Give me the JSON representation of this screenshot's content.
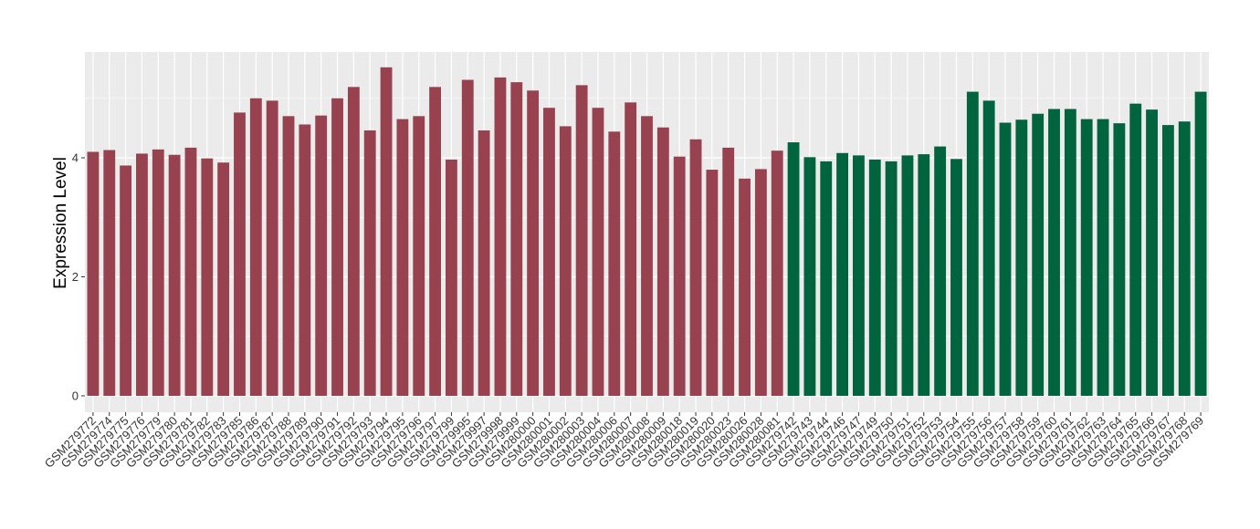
{
  "chart_data": {
    "type": "bar",
    "title": "",
    "xlabel": "",
    "ylabel": "Expression Level",
    "ylim": [
      0,
      5.75
    ],
    "yticks": [
      0,
      2,
      4
    ],
    "grid": true,
    "legend": "none",
    "colors": {
      "group1": "#99424f",
      "group2": "#00643f",
      "panel": "#ebebeb",
      "grid": "#ffffff"
    },
    "categories": [
      "GSM279772",
      "GSM279774",
      "GSM279775",
      "GSM279776",
      "GSM279779",
      "GSM279780",
      "GSM279781",
      "GSM279782",
      "GSM279783",
      "GSM279785",
      "GSM279786",
      "GSM279787",
      "GSM279788",
      "GSM279789",
      "GSM279790",
      "GSM279791",
      "GSM279792",
      "GSM279793",
      "GSM279794",
      "GSM279795",
      "GSM279796",
      "GSM279797",
      "GSM279799",
      "GSM279995",
      "GSM279997",
      "GSM279998",
      "GSM279999",
      "GSM280000",
      "GSM280001",
      "GSM280002",
      "GSM280003",
      "GSM280004",
      "GSM280006",
      "GSM280007",
      "GSM280008",
      "GSM280009",
      "GSM280018",
      "GSM280019",
      "GSM280020",
      "GSM280023",
      "GSM280026",
      "GSM280028",
      "GSM280081",
      "GSM279742",
      "GSM279743",
      "GSM279744",
      "GSM279746",
      "GSM279747",
      "GSM279749",
      "GSM279750",
      "GSM279751",
      "GSM279752",
      "GSM279753",
      "GSM279754",
      "GSM279755",
      "GSM279756",
      "GSM279757",
      "GSM279758",
      "GSM279759",
      "GSM279760",
      "GSM279761",
      "GSM279762",
      "GSM279763",
      "GSM279764",
      "GSM279765",
      "GSM279766",
      "GSM279767",
      "GSM279768",
      "GSM279769"
    ],
    "values": [
      4.1,
      4.13,
      3.87,
      4.07,
      4.14,
      4.05,
      4.17,
      3.99,
      3.92,
      4.76,
      5.0,
      4.96,
      4.7,
      4.56,
      4.71,
      5.0,
      5.19,
      4.46,
      5.52,
      4.65,
      4.7,
      5.19,
      3.97,
      5.31,
      4.46,
      5.35,
      5.27,
      5.13,
      4.84,
      4.53,
      5.22,
      4.84,
      4.44,
      4.93,
      4.7,
      4.51,
      4.02,
      4.31,
      3.8,
      4.17,
      3.65,
      3.81,
      4.12,
      4.26,
      4.01,
      3.94,
      4.08,
      4.04,
      3.97,
      3.94,
      4.04,
      4.06,
      4.19,
      3.98,
      5.11,
      4.96,
      4.59,
      4.64,
      4.74,
      4.82,
      4.82,
      4.65,
      4.65,
      4.58,
      4.91,
      4.81,
      4.55,
      4.61,
      5.11
    ],
    "groups": [
      1,
      1,
      1,
      1,
      1,
      1,
      1,
      1,
      1,
      1,
      1,
      1,
      1,
      1,
      1,
      1,
      1,
      1,
      1,
      1,
      1,
      1,
      1,
      1,
      1,
      1,
      1,
      1,
      1,
      1,
      1,
      1,
      1,
      1,
      1,
      1,
      1,
      1,
      1,
      1,
      1,
      1,
      1,
      2,
      2,
      2,
      2,
      2,
      2,
      2,
      2,
      2,
      2,
      2,
      2,
      2,
      2,
      2,
      2,
      2,
      2,
      2,
      2,
      2,
      2,
      2,
      2,
      2,
      2
    ]
  }
}
